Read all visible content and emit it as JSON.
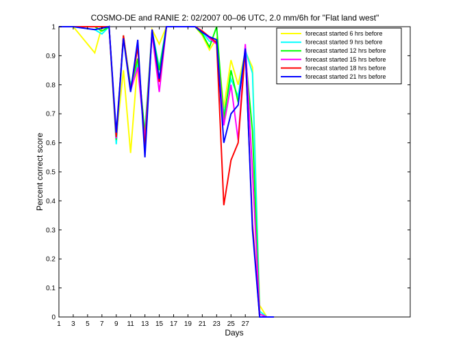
{
  "chart_data": {
    "type": "line",
    "title": "COSMO-DE and RANIE 2: 02/2007 00–06 UTC, 2.0 mm/6h for \"Flat land west\"",
    "xlabel": "Days",
    "ylabel": "Percent correct score",
    "xlim": [
      1,
      50
    ],
    "ylim": [
      0,
      1
    ],
    "xticks": [
      1,
      3,
      5,
      7,
      9,
      11,
      13,
      15,
      17,
      19,
      21,
      23,
      25,
      27
    ],
    "yticks": [
      0,
      0.1,
      0.2,
      0.3,
      0.4,
      0.5,
      0.6,
      0.7,
      0.8,
      0.9,
      1
    ],
    "ytick_labels": [
      "0",
      "0.1",
      "0.2",
      "0.3",
      "0.4",
      "0.5",
      "0.6",
      "0.7",
      "0.8",
      "0.9",
      "1"
    ],
    "legend_position": "top-right",
    "grid": false,
    "series": [
      {
        "name": "forecast started 6 hrs before",
        "color": "#ffff00",
        "points": [
          [
            1,
            1
          ],
          [
            2,
            1
          ],
          [
            3,
            1
          ],
          [
            6,
            0.91
          ],
          [
            7,
            1
          ],
          [
            8,
            1
          ],
          [
            9,
            0.62
          ],
          [
            10,
            0.85
          ],
          [
            11,
            0.565
          ],
          [
            12,
            0.88
          ],
          [
            13,
            0.62
          ],
          [
            14,
            0.99
          ],
          [
            15,
            0.94
          ],
          [
            16,
            1
          ],
          [
            17,
            1
          ],
          [
            18,
            1
          ],
          [
            19,
            1
          ],
          [
            20,
            1
          ],
          [
            21,
            0.97
          ],
          [
            22,
            0.92
          ],
          [
            23,
            0.96
          ],
          [
            24,
            0.72
          ],
          [
            25,
            0.885
          ],
          [
            26,
            0.8
          ],
          [
            27,
            0.915
          ],
          [
            28,
            0.86
          ],
          [
            29,
            0.04
          ],
          [
            30,
            0
          ],
          [
            31,
            0
          ]
        ]
      },
      {
        "name": "forecast started 9 hrs before",
        "color": "#00ffff",
        "points": [
          [
            1,
            1
          ],
          [
            2,
            1
          ],
          [
            3,
            1
          ],
          [
            6,
            0.99
          ],
          [
            7,
            0.975
          ],
          [
            8,
            1
          ],
          [
            9,
            0.595
          ],
          [
            10,
            0.96
          ],
          [
            11,
            0.8
          ],
          [
            12,
            0.87
          ],
          [
            13,
            0.64
          ],
          [
            14,
            0.985
          ],
          [
            15,
            0.86
          ],
          [
            16,
            1
          ],
          [
            17,
            1
          ],
          [
            18,
            1
          ],
          [
            19,
            1
          ],
          [
            20,
            1
          ],
          [
            21,
            0.98
          ],
          [
            22,
            0.95
          ],
          [
            23,
            0.95
          ],
          [
            24,
            0.7
          ],
          [
            25,
            0.82
          ],
          [
            26,
            0.76
          ],
          [
            27,
            0.92
          ],
          [
            28,
            0.84
          ],
          [
            29,
            0.02
          ],
          [
            30,
            0
          ],
          [
            31,
            0
          ]
        ]
      },
      {
        "name": "forecast started 12 hrs before",
        "color": "#00ff00",
        "points": [
          [
            1,
            1
          ],
          [
            2,
            1
          ],
          [
            3,
            1
          ],
          [
            6,
            1
          ],
          [
            7,
            0.985
          ],
          [
            8,
            1
          ],
          [
            9,
            0.61
          ],
          [
            10,
            0.97
          ],
          [
            11,
            0.79
          ],
          [
            12,
            0.89
          ],
          [
            13,
            0.63
          ],
          [
            14,
            0.98
          ],
          [
            15,
            0.85
          ],
          [
            16,
            1
          ],
          [
            17,
            1
          ],
          [
            18,
            1
          ],
          [
            19,
            1
          ],
          [
            20,
            1
          ],
          [
            21,
            0.975
          ],
          [
            22,
            0.93
          ],
          [
            23,
            1
          ],
          [
            24,
            0.68
          ],
          [
            25,
            0.85
          ],
          [
            26,
            0.74
          ],
          [
            27,
            0.905
          ],
          [
            28,
            0.64
          ],
          [
            29,
            0.01
          ],
          [
            30,
            0
          ],
          [
            31,
            0
          ]
        ]
      },
      {
        "name": "forecast started 15 hrs before",
        "color": "#ff00ff",
        "points": [
          [
            1,
            1
          ],
          [
            2,
            1
          ],
          [
            3,
            1
          ],
          [
            6,
            1
          ],
          [
            7,
            1
          ],
          [
            8,
            1
          ],
          [
            9,
            0.615
          ],
          [
            10,
            0.965
          ],
          [
            11,
            0.78
          ],
          [
            12,
            0.86
          ],
          [
            13,
            0.61
          ],
          [
            14,
            0.975
          ],
          [
            15,
            0.775
          ],
          [
            16,
            1
          ],
          [
            17,
            1
          ],
          [
            18,
            1
          ],
          [
            19,
            1
          ],
          [
            20,
            1
          ],
          [
            21,
            0.985
          ],
          [
            22,
            0.96
          ],
          [
            23,
            0.94
          ],
          [
            24,
            0.66
          ],
          [
            25,
            0.8
          ],
          [
            26,
            0.61
          ],
          [
            27,
            0.94
          ],
          [
            28,
            0.5
          ],
          [
            29,
            0.01
          ],
          [
            30,
            0
          ],
          [
            31,
            0
          ]
        ]
      },
      {
        "name": "forecast started 18 hrs before",
        "color": "#ff0000",
        "points": [
          [
            1,
            1
          ],
          [
            2,
            1
          ],
          [
            3,
            1
          ],
          [
            6,
            1
          ],
          [
            7,
            1
          ],
          [
            8,
            1
          ],
          [
            9,
            0.62
          ],
          [
            10,
            0.97
          ],
          [
            11,
            0.78
          ],
          [
            12,
            0.93
          ],
          [
            13,
            0.58
          ],
          [
            14,
            0.99
          ],
          [
            15,
            0.81
          ],
          [
            16,
            1
          ],
          [
            17,
            1
          ],
          [
            18,
            1
          ],
          [
            19,
            1
          ],
          [
            20,
            1
          ],
          [
            21,
            0.985
          ],
          [
            22,
            0.965
          ],
          [
            23,
            0.945
          ],
          [
            24,
            0.385
          ],
          [
            25,
            0.54
          ],
          [
            26,
            0.6
          ],
          [
            27,
            0.92
          ],
          [
            28,
            0.32
          ],
          [
            29,
            0
          ],
          [
            30,
            0
          ],
          [
            31,
            0
          ]
        ]
      },
      {
        "name": "forecast started 21 hrs before",
        "color": "#0000ff",
        "points": [
          [
            1,
            1
          ],
          [
            2,
            1
          ],
          [
            3,
            1
          ],
          [
            6,
            0.99
          ],
          [
            7,
            0.995
          ],
          [
            8,
            1
          ],
          [
            9,
            0.635
          ],
          [
            10,
            0.96
          ],
          [
            11,
            0.775
          ],
          [
            12,
            0.955
          ],
          [
            13,
            0.55
          ],
          [
            14,
            0.99
          ],
          [
            15,
            0.82
          ],
          [
            16,
            1
          ],
          [
            17,
            1
          ],
          [
            18,
            1
          ],
          [
            19,
            1
          ],
          [
            20,
            1
          ],
          [
            21,
            0.98
          ],
          [
            22,
            0.965
          ],
          [
            23,
            0.955
          ],
          [
            24,
            0.6
          ],
          [
            25,
            0.7
          ],
          [
            26,
            0.73
          ],
          [
            27,
            0.925
          ],
          [
            28,
            0.3
          ],
          [
            29,
            0
          ],
          [
            30,
            0
          ],
          [
            31,
            0
          ]
        ]
      }
    ]
  }
}
